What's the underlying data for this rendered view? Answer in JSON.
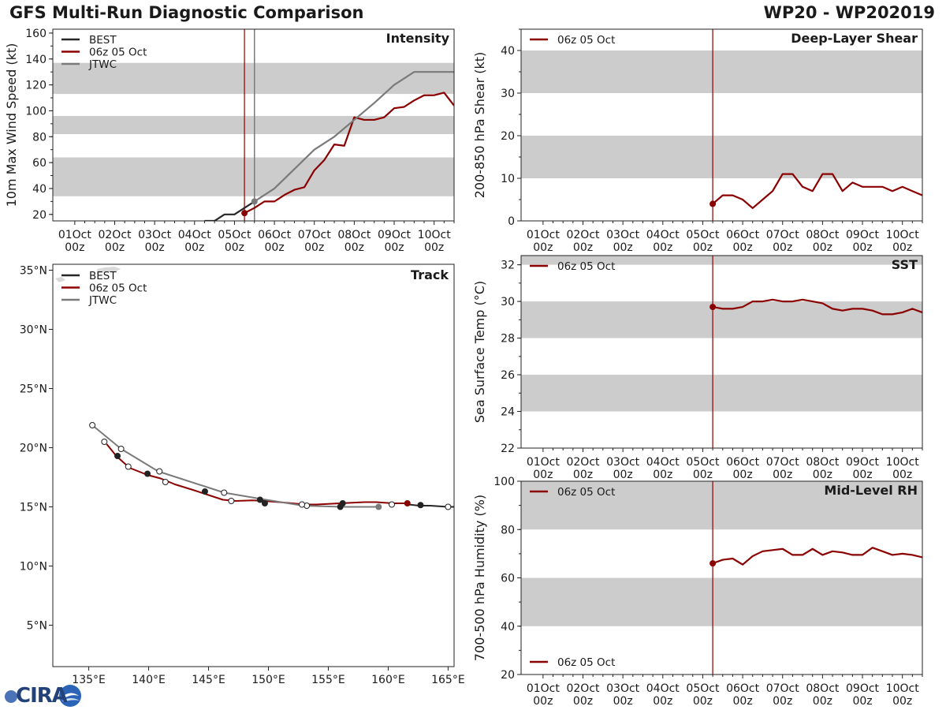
{
  "header": {
    "title": "GFS Multi-Run Diagnostic Comparison",
    "storm_id": "WP20 - WP202019"
  },
  "logo": {
    "text": "CIRA"
  },
  "colors": {
    "best": "#262626",
    "run": "#8b0000",
    "jtwc": "#7a7a7a",
    "band": "#cccccc",
    "init_line": "#8b0000",
    "jtwc_vline": "#7a7a7a"
  },
  "time_axis": {
    "ticks": [
      {
        "x": 0,
        "line1": "01Oct",
        "line2": "00z"
      },
      {
        "x": 1,
        "line1": "02Oct",
        "line2": "00z"
      },
      {
        "x": 2,
        "line1": "03Oct",
        "line2": "00z"
      },
      {
        "x": 3,
        "line1": "04Oct",
        "line2": "00z"
      },
      {
        "x": 4,
        "line1": "05Oct",
        "line2": "00z"
      },
      {
        "x": 5,
        "line1": "06Oct",
        "line2": "00z"
      },
      {
        "x": 6,
        "line1": "07Oct",
        "line2": "00z"
      },
      {
        "x": 7,
        "line1": "08Oct",
        "line2": "00z"
      },
      {
        "x": 8,
        "line1": "09Oct",
        "line2": "00z"
      },
      {
        "x": 9,
        "line1": "10Oct",
        "line2": "00z"
      }
    ],
    "xlim": [
      -0.55,
      9.5
    ],
    "init_time": 4.25
  },
  "chart_data": [
    {
      "id": "intensity",
      "type": "line",
      "title": "Intensity",
      "ylabel": "10m Max Wind Speed (kt)",
      "ylim": [
        15,
        163
      ],
      "yticks": [
        20,
        40,
        60,
        80,
        100,
        120,
        140,
        160
      ],
      "bands": [
        [
          34,
          64
        ],
        [
          82,
          96
        ],
        [
          113,
          137
        ]
      ],
      "jtwc_time": 4.5,
      "legend": [
        "BEST",
        "06z 05 Oct",
        "JTWC"
      ],
      "series": [
        {
          "name": "BEST",
          "x": [
            3.25,
            3.5,
            3.75,
            4.0,
            4.25,
            4.5
          ],
          "y": [
            15,
            15,
            20,
            20,
            25,
            30
          ]
        },
        {
          "name": "06z 05 Oct",
          "x": [
            4.25,
            4.5,
            4.75,
            5.0,
            5.25,
            5.5,
            5.75,
            6.0,
            6.25,
            6.5,
            6.75,
            7.0,
            7.25,
            7.5,
            7.75,
            8.0,
            8.25,
            8.5,
            8.75,
            9.0,
            9.25,
            9.5
          ],
          "y": [
            21,
            25,
            30,
            30,
            35,
            39,
            41,
            54,
            62,
            74,
            73,
            95,
            93,
            93,
            95,
            102,
            103,
            108,
            112,
            112,
            114,
            104
          ]
        },
        {
          "name": "JTWC",
          "x": [
            4.5,
            5.0,
            5.5,
            6.0,
            6.5,
            7.0,
            7.5,
            8.0,
            8.5,
            9.0,
            9.5
          ],
          "y": [
            30,
            40,
            55,
            70,
            80,
            93,
            106,
            120,
            130,
            130,
            130
          ]
        }
      ],
      "markers": [
        {
          "series": "06z 05 Oct",
          "x": 4.25,
          "y": 21
        },
        {
          "series": "JTWC",
          "x": 4.5,
          "y": 30
        }
      ]
    },
    {
      "id": "shear",
      "type": "line",
      "title": "Deep-Layer Shear",
      "ylabel": "200-850 hPa Shear (kt)",
      "ylim": [
        0,
        45
      ],
      "yticks": [
        0,
        10,
        20,
        30,
        40
      ],
      "bands": [
        [
          10,
          20
        ],
        [
          30,
          40
        ]
      ],
      "legend": [
        "06z 05 Oct"
      ],
      "series": [
        {
          "name": "06z 05 Oct",
          "x": [
            4.25,
            4.5,
            4.75,
            5.0,
            5.25,
            5.5,
            5.75,
            6.0,
            6.25,
            6.5,
            6.75,
            7.0,
            7.25,
            7.5,
            7.75,
            8.0,
            8.25,
            8.5,
            8.75,
            9.0,
            9.25,
            9.5
          ],
          "y": [
            4,
            6,
            6,
            5,
            3,
            5,
            7,
            11,
            11,
            8,
            7,
            11,
            11,
            7,
            9,
            8,
            8,
            8,
            7,
            8,
            7,
            6
          ]
        }
      ],
      "markers": [
        {
          "series": "06z 05 Oct",
          "x": 4.25,
          "y": 4
        }
      ]
    },
    {
      "id": "sst",
      "type": "line",
      "title": "SST",
      "ylabel": "Sea Surface Temp (°C)",
      "ylim": [
        22,
        32.5
      ],
      "yticks": [
        22,
        24,
        26,
        28,
        30,
        32
      ],
      "bands": [
        [
          24,
          26
        ],
        [
          28,
          30
        ],
        [
          32,
          34
        ]
      ],
      "legend": [
        "06z 05 Oct"
      ],
      "series": [
        {
          "name": "06z 05 Oct",
          "x": [
            4.25,
            4.5,
            4.75,
            5.0,
            5.25,
            5.5,
            5.75,
            6.0,
            6.25,
            6.5,
            6.75,
            7.0,
            7.25,
            7.5,
            7.75,
            8.0,
            8.25,
            8.5,
            8.75,
            9.0,
            9.25,
            9.5
          ],
          "y": [
            29.7,
            29.6,
            29.6,
            29.7,
            30.0,
            30.0,
            30.1,
            30.0,
            30.0,
            30.1,
            30.0,
            29.9,
            29.6,
            29.5,
            29.6,
            29.6,
            29.5,
            29.3,
            29.3,
            29.4,
            29.6,
            29.4
          ]
        }
      ],
      "markers": [
        {
          "series": "06z 05 Oct",
          "x": 4.25,
          "y": 29.7
        }
      ]
    },
    {
      "id": "rh",
      "type": "line",
      "title": "Mid-Level RH",
      "ylabel": "700-500 hPa Humidity (%)",
      "ylim": [
        20,
        100
      ],
      "yticks": [
        20,
        40,
        60,
        80,
        100
      ],
      "bands": [
        [
          40,
          60
        ],
        [
          80,
          100
        ]
      ],
      "legend": [
        "06z 05 Oct"
      ],
      "series": [
        {
          "name": "06z 05 Oct",
          "x": [
            4.25,
            4.5,
            4.75,
            5.0,
            5.25,
            5.5,
            5.75,
            6.0,
            6.25,
            6.5,
            6.75,
            7.0,
            7.25,
            7.5,
            7.75,
            8.0,
            8.25,
            8.5,
            8.75,
            9.0,
            9.25,
            9.5
          ],
          "y": [
            66,
            67.5,
            68,
            65.5,
            69,
            71,
            71.5,
            72,
            69.5,
            69.5,
            72,
            69.5,
            71,
            70.5,
            69.5,
            69.5,
            72.5,
            71,
            69.5,
            70,
            69.5,
            68.5
          ]
        }
      ],
      "markers": [
        {
          "series": "06z 05 Oct",
          "x": 4.25,
          "y": 66
        }
      ]
    },
    {
      "id": "track",
      "type": "scatter",
      "title": "Track",
      "xlim": [
        132,
        165.5
      ],
      "ylim": [
        1.5,
        35.5
      ],
      "xticks": [
        135,
        140,
        145,
        150,
        155,
        160,
        165
      ],
      "xticklabels": [
        "135°E",
        "140°E",
        "145°E",
        "150°E",
        "155°E",
        "160°E",
        "165°E"
      ],
      "yticks": [
        5,
        10,
        15,
        20,
        25,
        30,
        35
      ],
      "yticklabels": [
        "5°N",
        "10°N",
        "15°N",
        "20°N",
        "25°N",
        "30°N",
        "35°N"
      ],
      "legend": [
        "BEST",
        "06z 05 Oct",
        "JTWC"
      ],
      "series": [
        {
          "name": "BEST",
          "lon": [
            165.5,
            165.0,
            163.5,
            162.6,
            161.7
          ],
          "lat": [
            15.0,
            15.0,
            15.1,
            15.1,
            15.2
          ]
        },
        {
          "name": "06z 05 Oct",
          "lon": [
            161.7,
            160.4,
            159.0,
            158.0,
            157.0,
            156.0,
            155.0,
            154.0,
            153.0,
            152.0,
            150.9,
            149.6,
            148.7,
            147.3,
            146.2,
            145.0,
            143.8,
            142.2,
            141.0,
            139.9,
            138.4,
            137.3,
            136.5
          ],
          "lat": [
            15.3,
            15.3,
            15.4,
            15.4,
            15.35,
            15.3,
            15.25,
            15.2,
            15.2,
            15.3,
            15.4,
            15.5,
            15.55,
            15.5,
            15.6,
            16.0,
            16.4,
            16.9,
            17.4,
            17.7,
            18.3,
            19.3,
            20.3
          ]
        },
        {
          "name": "JTWC",
          "lon": [
            159.2,
            156.2,
            152.9,
            149.8,
            146.3,
            140.8,
            137.7,
            135.3
          ],
          "lat": [
            15.0,
            15.0,
            15.1,
            15.6,
            16.2,
            18.0,
            19.9,
            21.9
          ]
        }
      ],
      "markers": [
        {
          "series": "06z 05 Oct",
          "lon": 161.6,
          "lat": 15.3,
          "kind": "filled"
        },
        {
          "series": "06z 05 Oct",
          "lon": 160.3,
          "lat": 15.2,
          "kind": "open"
        },
        {
          "series": "BEST",
          "lon": 162.7,
          "lat": 15.15,
          "kind": "filled"
        },
        {
          "series": "BEST",
          "lon": 165.0,
          "lat": 15.0,
          "kind": "open"
        },
        {
          "series": "JTWC",
          "lon": 159.2,
          "lat": 15.0,
          "kind": "gray"
        },
        {
          "series": "06z 05 Oct",
          "lon": 156.2,
          "lat": 15.3,
          "kind": "filled"
        },
        {
          "series": "06z 05 Oct",
          "lon": 156.0,
          "lat": 15.0,
          "kind": "filled"
        },
        {
          "series": "06z 05 Oct",
          "lon": 153.2,
          "lat": 15.1,
          "kind": "open"
        },
        {
          "series": "06z 05 Oct",
          "lon": 152.8,
          "lat": 15.2,
          "kind": "open"
        },
        {
          "series": "06z 05 Oct",
          "lon": 149.7,
          "lat": 15.3,
          "kind": "filled"
        },
        {
          "series": "06z 05 Oct",
          "lon": 149.3,
          "lat": 15.6,
          "kind": "filled"
        },
        {
          "series": "06z 05 Oct",
          "lon": 146.9,
          "lat": 15.5,
          "kind": "open"
        },
        {
          "series": "06z 05 Oct",
          "lon": 146.3,
          "lat": 16.2,
          "kind": "open"
        },
        {
          "series": "06z 05 Oct",
          "lon": 144.7,
          "lat": 16.3,
          "kind": "filled"
        },
        {
          "series": "06z 05 Oct",
          "lon": 141.4,
          "lat": 17.1,
          "kind": "open"
        },
        {
          "series": "06z 05 Oct",
          "lon": 140.9,
          "lat": 18.0,
          "kind": "open"
        },
        {
          "series": "06z 05 Oct",
          "lon": 139.9,
          "lat": 17.8,
          "kind": "filled"
        },
        {
          "series": "06z 05 Oct",
          "lon": 138.3,
          "lat": 18.4,
          "kind": "open"
        },
        {
          "series": "06z 05 Oct",
          "lon": 137.4,
          "lat": 19.3,
          "kind": "filled"
        },
        {
          "series": "06z 05 Oct",
          "lon": 137.7,
          "lat": 19.9,
          "kind": "open"
        },
        {
          "series": "06z 05 Oct",
          "lon": 136.3,
          "lat": 20.5,
          "kind": "open"
        },
        {
          "series": "JTWC",
          "lon": 135.3,
          "lat": 21.9,
          "kind": "open"
        }
      ]
    }
  ]
}
